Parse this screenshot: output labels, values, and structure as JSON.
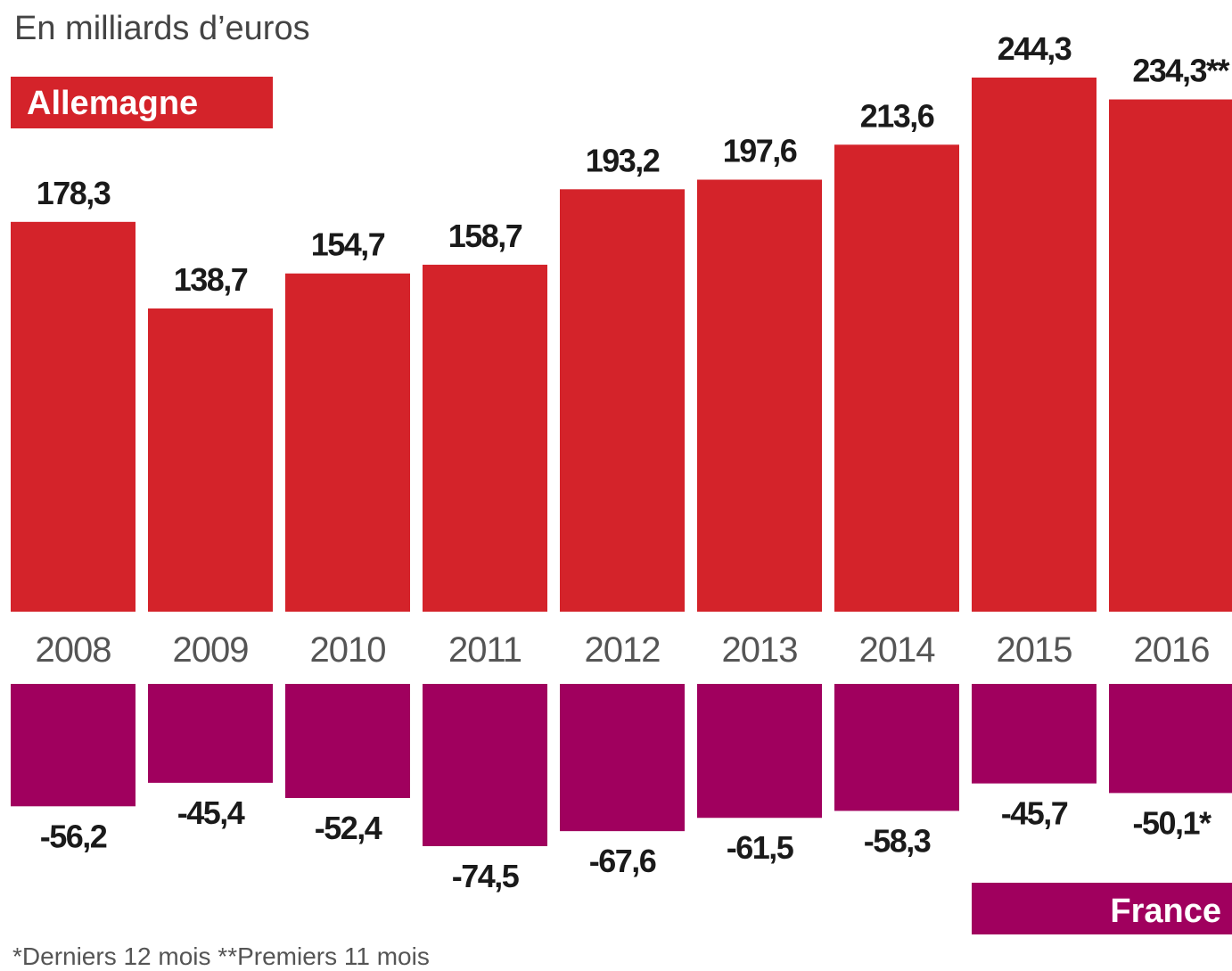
{
  "chart_data": {
    "type": "bar",
    "unit_label": "En milliards d’euros",
    "categories": [
      "2008",
      "2009",
      "2010",
      "2011",
      "2012",
      "2013",
      "2014",
      "2015",
      "2016"
    ],
    "series": [
      {
        "name": "Allemagne",
        "color": "#d4232a",
        "values": [
          178.3,
          138.7,
          154.7,
          158.7,
          193.2,
          197.6,
          213.6,
          244.3,
          234.3
        ],
        "labels": [
          "178,3",
          "138,7",
          "154,7",
          "158,7",
          "193,2",
          "197,6",
          "213,6",
          "244,3",
          "234,3**"
        ]
      },
      {
        "name": "France",
        "color": "#a0005e",
        "values": [
          -56.2,
          -45.4,
          -52.4,
          -74.5,
          -67.6,
          -61.5,
          -58.3,
          -45.7,
          -50.1
        ],
        "labels": [
          "-56,2",
          "-45,4",
          "-52,4",
          "-74,5",
          "-67,6",
          "-61,5",
          "-58,3",
          "-45,7",
          "-50,1*"
        ]
      }
    ],
    "footnote": "*Derniers 12 mois **Premiers 11 mois",
    "legend_positions": {
      "Allemagne": "top-left",
      "France": "bottom-right"
    },
    "grid": false
  }
}
